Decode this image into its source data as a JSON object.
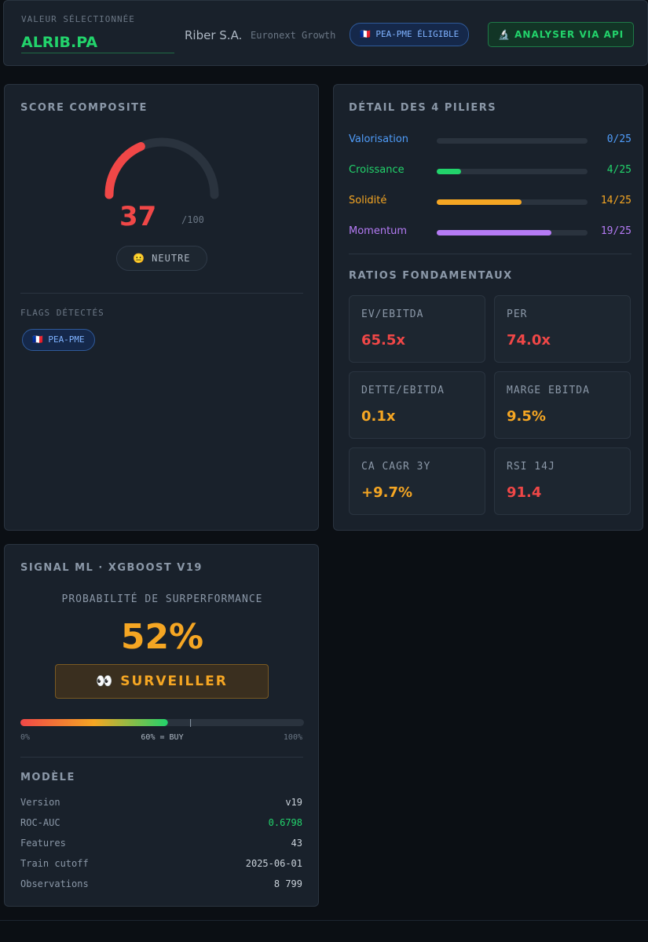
{
  "header": {
    "label": "VALEUR SÉLECTIONNÉE",
    "ticker": "ALRIB.PA",
    "company": "Riber S.A.",
    "market": "Euronext Growth",
    "badge": "🇫🇷 PEA-PME ÉLIGIBLE",
    "button": "🔬 ANALYSER VIA API"
  },
  "score": {
    "title": "SCORE COMPOSITE",
    "value": 37,
    "max": 100,
    "max_label": "/100",
    "status": "😐 NEUTRE",
    "flags_title": "FLAGS DÉTECTÉS",
    "flags": [
      "🇫🇷 PEA-PME"
    ]
  },
  "pillars": {
    "title": "DÉTAIL DES 4 PILIERS",
    "items": [
      {
        "name": "Valorisation",
        "score": 0,
        "max": 25,
        "label": "0/25",
        "color": "#4f9cf9"
      },
      {
        "name": "Croissance",
        "score": 4,
        "max": 25,
        "label": "4/25",
        "color": "#22d36b"
      },
      {
        "name": "Solidité",
        "score": 14,
        "max": 25,
        "label": "14/25",
        "color": "#f5a623"
      },
      {
        "name": "Momentum",
        "score": 19,
        "max": 25,
        "label": "19/25",
        "color": "#b57bf5"
      }
    ]
  },
  "ratios": {
    "title": "RATIOS FONDAMENTAUX",
    "items": [
      {
        "label": "EV/EBITDA",
        "value": "65.5x",
        "color": "#f04747"
      },
      {
        "label": "PER",
        "value": "74.0x",
        "color": "#f04747"
      },
      {
        "label": "DETTE/EBITDA",
        "value": "0.1x",
        "color": "#f5a623"
      },
      {
        "label": "MARGE EBITDA",
        "value": "9.5%",
        "color": "#f5a623"
      },
      {
        "label": "CA CAGR 3Y",
        "value": "+9.7%",
        "color": "#f5a623"
      },
      {
        "label": "RSI 14J",
        "value": "91.4",
        "color": "#f04747"
      }
    ]
  },
  "ml": {
    "title": "SIGNAL ML · XGBOOST V19",
    "subtitle": "PROBABILITÉ DE SURPERFORMANCE",
    "probability": {
      "value": 52,
      "label": "52%"
    },
    "signal": "👀 SURVEILLER",
    "scale_min": "0%",
    "threshold": {
      "value": 60,
      "label": "60% = BUY"
    },
    "scale_max": "100%",
    "model_title": "MODÈLE",
    "model_rows": [
      [
        "Version",
        "v19"
      ],
      [
        "ROC-AUC",
        "0.6798"
      ],
      [
        "Features",
        "43"
      ],
      [
        "Train cutoff",
        "2025-06-01"
      ],
      [
        "Observations",
        "8 799"
      ]
    ]
  }
}
